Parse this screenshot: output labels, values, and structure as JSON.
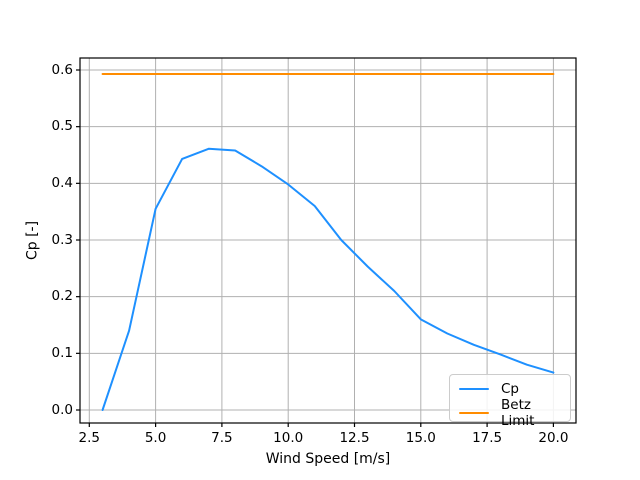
{
  "figure": {
    "background": "#ffffff"
  },
  "chart_data": {
    "type": "line",
    "title": "",
    "xlabel": "Wind Speed [m/s]",
    "ylabel": "Cp [-]",
    "xlim": [
      2.15,
      20.85
    ],
    "ylim": [
      -0.02,
      0.62
    ],
    "grid": true,
    "x_ticks": [
      2.5,
      5.0,
      7.5,
      10.0,
      12.5,
      15.0,
      17.5,
      20.0
    ],
    "x_tick_labels": [
      "2.5",
      "5.0",
      "7.5",
      "10.0",
      "12.5",
      "15.0",
      "17.5",
      "20.0"
    ],
    "y_ticks": [
      0.0,
      0.1,
      0.2,
      0.3,
      0.4,
      0.5,
      0.6
    ],
    "y_tick_labels": [
      "0.0",
      "0.1",
      "0.2",
      "0.3",
      "0.4",
      "0.5",
      "0.6"
    ],
    "legend_position": "lower right",
    "series": [
      {
        "name": "Cp",
        "color": "#1E90FF",
        "x": [
          3,
          4,
          5,
          6,
          7,
          8,
          9,
          10,
          11,
          12,
          13,
          14,
          15,
          16,
          17,
          18,
          19,
          20
        ],
        "y": [
          0.0,
          0.14,
          0.355,
          0.443,
          0.461,
          0.458,
          0.43,
          0.398,
          0.36,
          0.3,
          0.253,
          0.21,
          0.16,
          0.135,
          0.115,
          0.098,
          0.08,
          0.066
        ]
      },
      {
        "name": "Betz Limit",
        "color": "#FF8C00",
        "x": [
          3,
          20
        ],
        "y": [
          0.593,
          0.593
        ]
      }
    ],
    "colors": {
      "grid": "#b0b0b0",
      "spine": "#000000",
      "tick": "#000000",
      "text": "#000000"
    }
  }
}
